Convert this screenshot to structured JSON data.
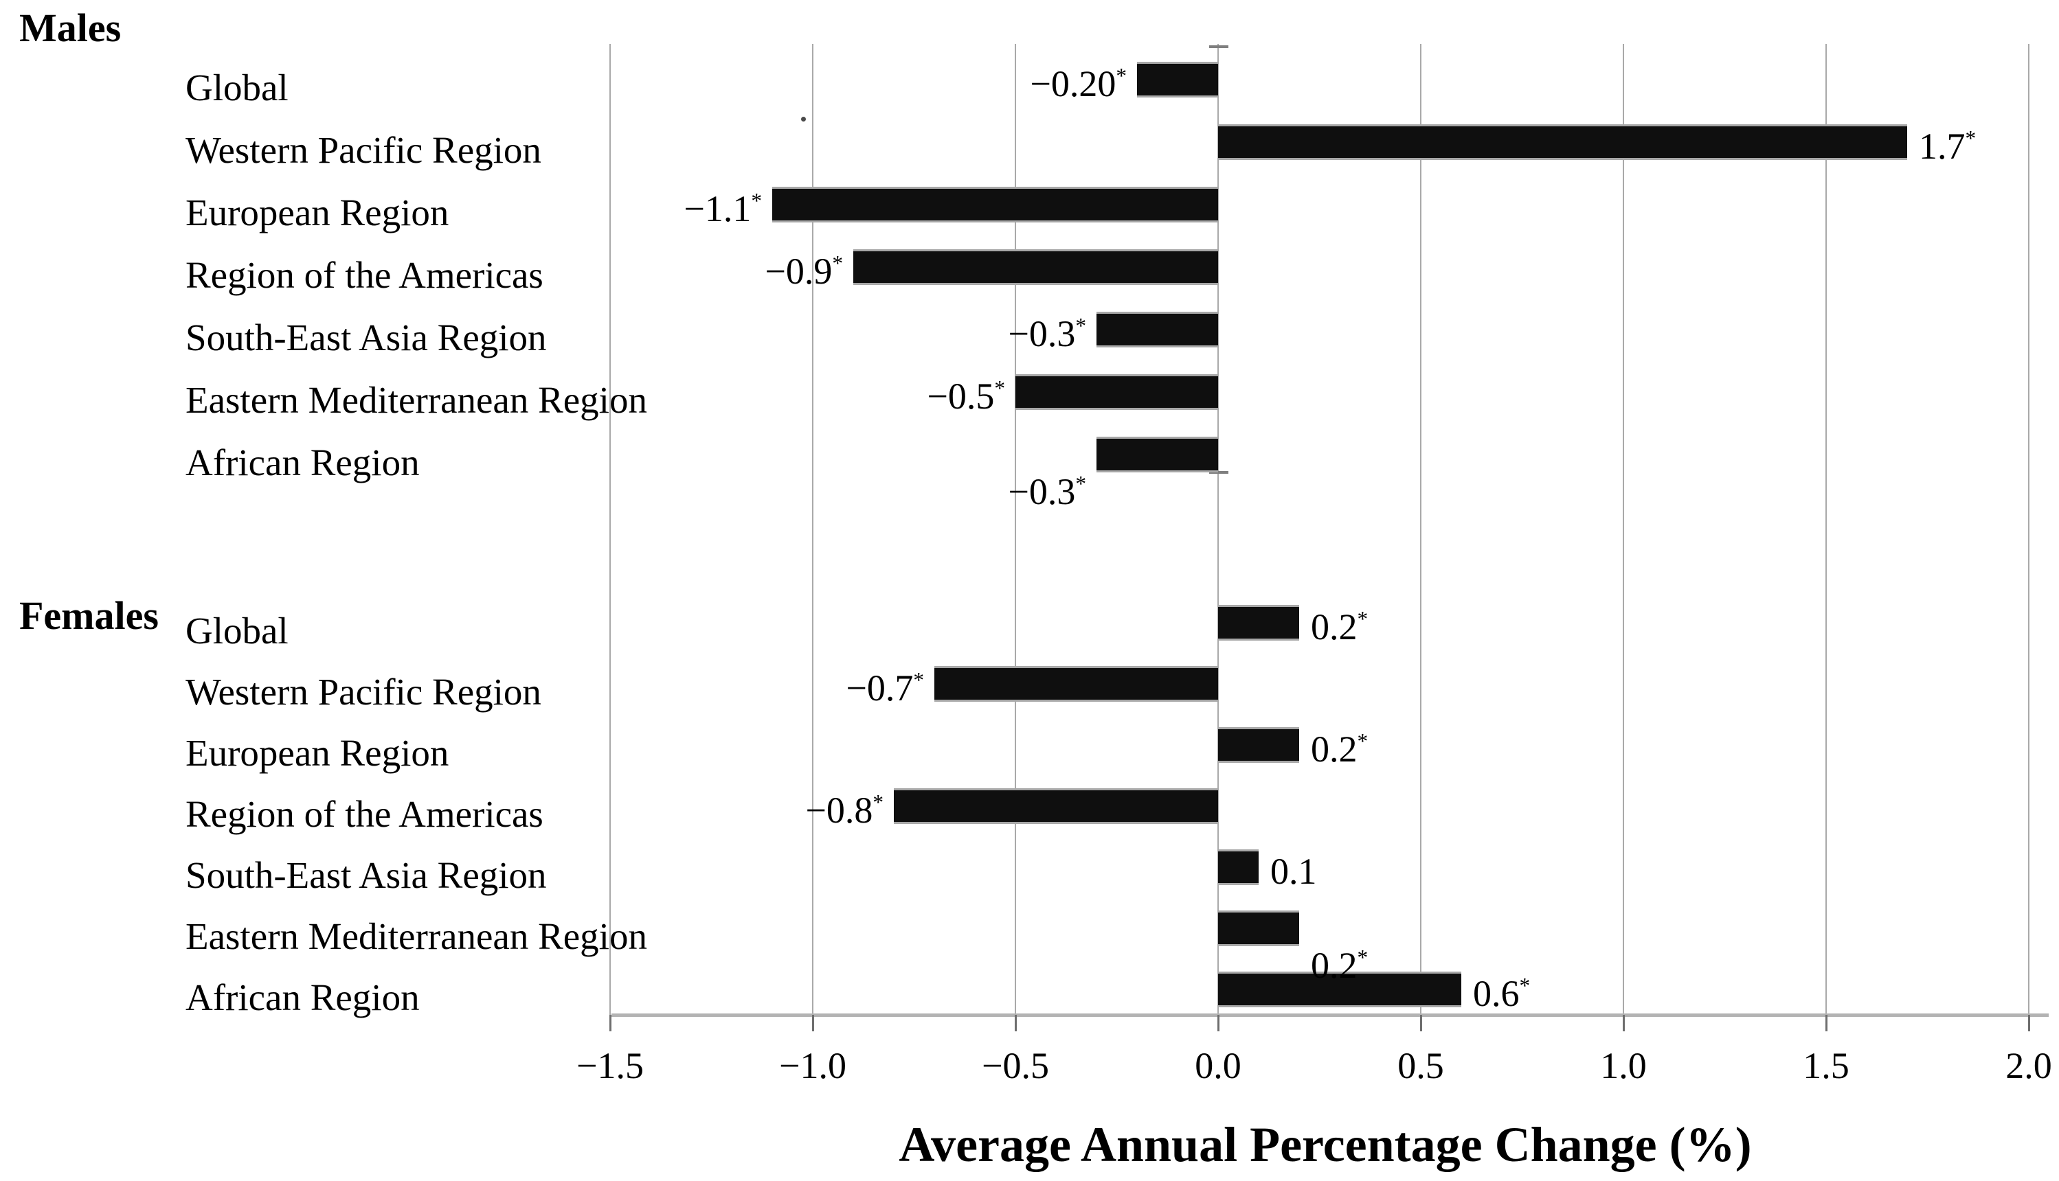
{
  "chart_data": {
    "type": "bar",
    "orientation": "horizontal",
    "xlabel": "Average Annual Percentage Change (%)",
    "xlim": [
      -1.5,
      2.0
    ],
    "grid": true,
    "legend": "none",
    "bar_color": "#0f0f0f",
    "gridline_color": "#a9a9a9",
    "axis_line_color": "#b3b3b3",
    "significance_marker": "*",
    "x_ticks": [
      {
        "value": -1.5,
        "label": "−1.5"
      },
      {
        "value": -1.0,
        "label": "−1.0"
      },
      {
        "value": -0.5,
        "label": "−0.5"
      },
      {
        "value": 0.0,
        "label": "0.0"
      },
      {
        "value": 0.5,
        "label": "0.5"
      },
      {
        "value": 1.0,
        "label": "1.0"
      },
      {
        "value": 1.5,
        "label": "1.5"
      },
      {
        "value": 2.0,
        "label": "2.0"
      }
    ],
    "groups": [
      {
        "label": "Males",
        "items": [
          {
            "category": "Global",
            "value": -0.2,
            "value_label": "−0.20",
            "significant": true,
            "label_below": false
          },
          {
            "category": "Western Pacific Region",
            "value": 1.7,
            "value_label": "1.7",
            "significant": true,
            "label_below": false
          },
          {
            "category": "European Region",
            "value": -1.1,
            "value_label": "−1.1",
            "significant": true,
            "label_below": false
          },
          {
            "category": "Region of the Americas",
            "value": -0.9,
            "value_label": "−0.9",
            "significant": true,
            "label_below": false
          },
          {
            "category": "South-East Asia Region",
            "value": -0.3,
            "value_label": "−0.3",
            "significant": true,
            "label_below": false
          },
          {
            "category": "Eastern Mediterranean Region",
            "value": -0.5,
            "value_label": "−0.5",
            "significant": true,
            "label_below": false
          },
          {
            "category": "African Region",
            "value": -0.3,
            "value_label": "−0.3",
            "significant": true,
            "label_below": true
          }
        ]
      },
      {
        "label": "Females",
        "items": [
          {
            "category": "Global",
            "value": 0.2,
            "value_label": "0.2",
            "significant": true,
            "label_below": false
          },
          {
            "category": "Western Pacific Region",
            "value": -0.7,
            "value_label": "−0.7",
            "significant": true,
            "label_below": false
          },
          {
            "category": "European Region",
            "value": 0.2,
            "value_label": "0.2",
            "significant": true,
            "label_below": false
          },
          {
            "category": "Region of the Americas",
            "value": -0.8,
            "value_label": "−0.8",
            "significant": true,
            "label_below": false
          },
          {
            "category": "South-East Asia Region",
            "value": 0.1,
            "value_label": "0.1",
            "significant": false,
            "label_below": false
          },
          {
            "category": "Eastern Mediterranean Region",
            "value": 0.2,
            "value_label": "0.2",
            "significant": true,
            "label_below": true
          },
          {
            "category": "African Region",
            "value": 0.6,
            "value_label": "0.6",
            "significant": true,
            "label_below": false
          }
        ]
      }
    ]
  }
}
